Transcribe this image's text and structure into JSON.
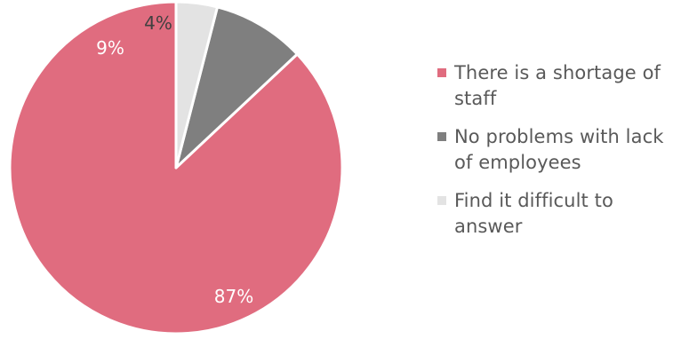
{
  "chart_data": {
    "type": "pie",
    "categories": [
      "There is a shortage of staff",
      "No problems with lack of employees",
      "Find it difficult to answer"
    ],
    "values": [
      87,
      9,
      4
    ],
    "data_labels": [
      "87%",
      "9%",
      "4%"
    ],
    "colors": [
      "#E06C7F",
      "#7F7F7F",
      "#E3E3E3"
    ],
    "label_colors": [
      "#FFFFFF",
      "#FFFFFF",
      "#404040"
    ],
    "legend_position": "right",
    "start_angle_deg": 0,
    "direction": "counterclockwise"
  },
  "legend": {
    "items": [
      {
        "label": "There is a shortage of staff",
        "color": "#E06C7F"
      },
      {
        "label": "No problems with lack of employees",
        "color": "#7F7F7F"
      },
      {
        "label": "Find it difficult to answer",
        "color": "#E3E3E3"
      }
    ]
  }
}
